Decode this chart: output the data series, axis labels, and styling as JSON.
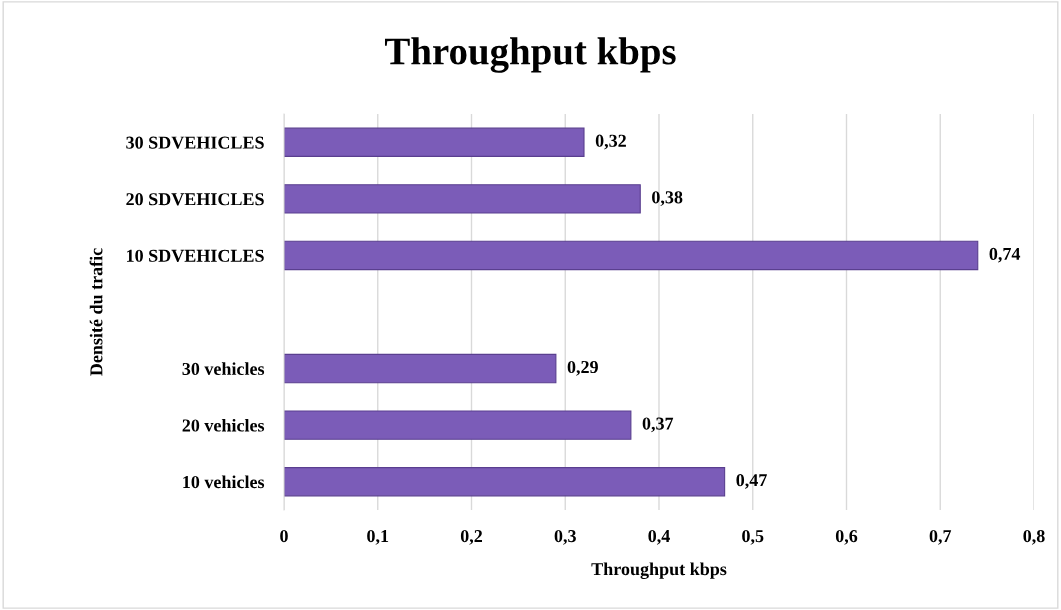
{
  "chart_data": {
    "type": "bar",
    "orientation": "horizontal",
    "title": "Throughput kbps",
    "xlabel": "Throughput kbps",
    "ylabel": "Densité du trafic",
    "categories": [
      "30 SDVEHICLES",
      "20 SDVEHICLES",
      "10 SDVEHICLES",
      null,
      "30 vehicles",
      "20 vehicles",
      "10 vehicles"
    ],
    "values": [
      0.32,
      0.38,
      0.74,
      null,
      0.29,
      0.37,
      0.47
    ],
    "value_labels": [
      "0,32",
      "0,38",
      "0,74",
      null,
      "0,29",
      "0,37",
      "0,47"
    ],
    "color": "#7b5cb8",
    "xlim": [
      0,
      0.8
    ],
    "xticks": [
      0,
      {
        "value": 0.1,
        "label": "0,1"
      },
      {
        "value": 0.2,
        "label": "0,2"
      },
      {
        "value": 0.3,
        "label": "0,3"
      },
      {
        "value": 0.4,
        "label": "0,4"
      },
      {
        "value": 0.5,
        "label": "0,5"
      },
      {
        "value": 0.6,
        "label": "0,6"
      },
      {
        "value": 0.7,
        "label": "0,7"
      },
      {
        "value": 0.8,
        "label": "0,8"
      }
    ],
    "grid": "x",
    "legend": false
  }
}
